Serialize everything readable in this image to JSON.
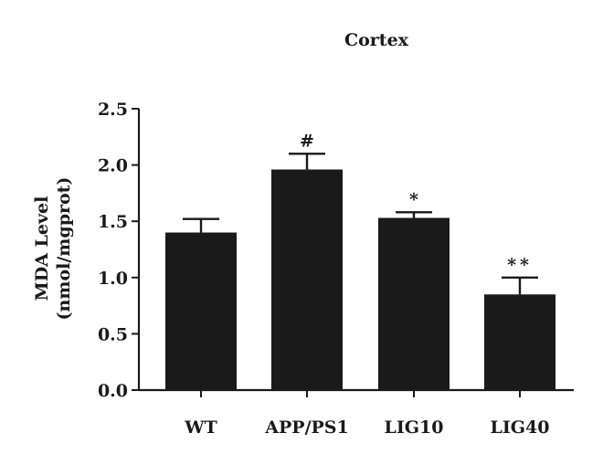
{
  "chart_data": {
    "type": "bar",
    "title": "Cortex",
    "ylabel_line1": "MDA Level",
    "ylabel_line2": "(nmol/mgprot)",
    "xlabel": "",
    "categories": [
      "WT",
      "APP/PS1",
      "LIG10",
      "LIG40"
    ],
    "values": [
      1.4,
      1.96,
      1.53,
      0.85
    ],
    "errors": [
      0.12,
      0.14,
      0.05,
      0.15
    ],
    "significance": [
      "",
      "#",
      "*",
      "**"
    ],
    "ylim": [
      0,
      2.5
    ],
    "yticks": [
      0.0,
      0.5,
      1.0,
      1.5,
      2.0,
      2.5
    ],
    "ytick_labels": [
      "0.0",
      "0.5",
      "1.0",
      "1.5",
      "2.0",
      "2.5"
    ],
    "grid": false,
    "bar_color": "#1a1a1a"
  }
}
